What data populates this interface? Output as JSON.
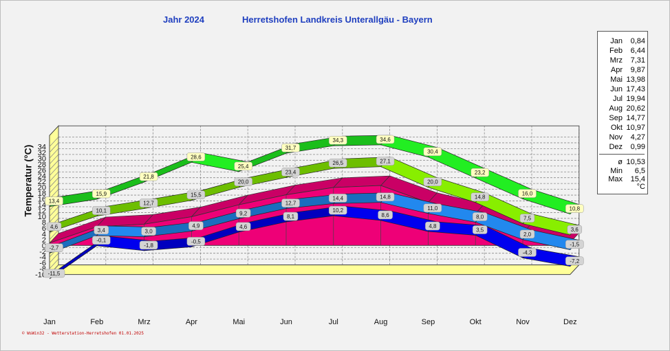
{
  "header": {
    "year_label": "Jahr  2024",
    "station": "Herretshofen Landkreis Unterallgäu - Bayern"
  },
  "footer": "© WsWin32 - Wetterstation-Herretshofen  01.01.2025",
  "chart_data": {
    "type": "area",
    "title": "Jahr  2024",
    "subtitle": "Herretshofen Landkreis Unterallgäu - Bayern",
    "ylabel": "Temperatur  (°C)",
    "xlabel": "",
    "categories": [
      "Jan",
      "Feb",
      "Mrz",
      "Apr",
      "Mai",
      "Jun",
      "Jul",
      "Aug",
      "Sep",
      "Okt",
      "Nov",
      "Dez"
    ],
    "ylim": [
      -10,
      35
    ],
    "yticks": [
      -10,
      -8,
      -6,
      -4,
      -2,
      0,
      2,
      4,
      6,
      8,
      10,
      12,
      14,
      16,
      18,
      20,
      22,
      24,
      26,
      28,
      30,
      32,
      34
    ],
    "ytick_labels": [
      "-10",
      "-8",
      "-6",
      "-4",
      "-2",
      "0",
      "2",
      "4",
      "6",
      "8",
      "10",
      "12",
      "14",
      "16",
      "18",
      "20",
      "22",
      "24",
      "26",
      "28",
      "30",
      "32",
      "34"
    ],
    "grid": true,
    "series": [
      {
        "key": "max_abs",
        "values": [
          13.4,
          15.9,
          21.8,
          28.6,
          25.4,
          31.7,
          34.3,
          34.6,
          30.4,
          23.2,
          16.0,
          10.8
        ],
        "labels": [
          "13,4",
          "15,9",
          "21,8",
          "28,6",
          "25,4",
          "31,7",
          "34,3",
          "34,6",
          "30,4",
          "23,2",
          "16,0",
          "10,8"
        ],
        "color": "#22ee22",
        "label_bg": "#ffffc0"
      },
      {
        "key": "max_avg",
        "values": [
          4.6,
          10.1,
          12.7,
          15.5,
          20.0,
          23.4,
          26.5,
          27.1,
          20.0,
          14.8,
          7.5,
          3.6
        ],
        "labels": [
          "4,6",
          "10,1",
          "12,7",
          "15,5",
          "20,0",
          "23,4",
          "26,5",
          "27,1",
          "20,0",
          "14,8",
          "7,5",
          "3,6"
        ],
        "color": "#88ee00",
        "label_bg": "#d4d4d4"
      },
      {
        "key": "mean",
        "values": [
          0.84,
          6.44,
          7.31,
          9.87,
          13.98,
          17.43,
          19.94,
          20.62,
          14.77,
          10.97,
          4.27,
          0.99
        ],
        "color": "#ee0077"
      },
      {
        "key": "min_avg",
        "values": [
          -2.7,
          3.4,
          3.0,
          4.9,
          9.2,
          12.7,
          14.4,
          14.8,
          11.0,
          8.0,
          2.0,
          -1.5
        ],
        "labels": [
          "-2,7",
          "3,4",
          "3,0",
          "4,9",
          "9,2",
          "12,7",
          "14,4",
          "14,8",
          "11,0",
          "8,0",
          "2,0",
          "-1,5"
        ],
        "color": "#2288ee",
        "label_bg": "#d4d4d4"
      },
      {
        "key": "min_abs",
        "values": [
          -11.5,
          -0.1,
          -1.8,
          -0.5,
          4.6,
          8.1,
          10.2,
          8.6,
          4.8,
          3.5,
          -4.3,
          -7.2
        ],
        "labels": [
          "-11,5",
          "-0,1",
          "-1,8",
          "-0,5",
          "4,6",
          "8,1",
          "10,2",
          "8,6",
          "4,8",
          "3,5",
          "-4,3",
          "-7,2"
        ],
        "color": "#0000ee",
        "label_bg": "#d4d4d4"
      }
    ]
  },
  "summary": {
    "months": [
      {
        "m": "Jan",
        "v": "0,84"
      },
      {
        "m": "Feb",
        "v": "6,44"
      },
      {
        "m": "Mrz",
        "v": "7,31"
      },
      {
        "m": "Apr",
        "v": "9,87"
      },
      {
        "m": "Mai",
        "v": "13,98"
      },
      {
        "m": "Jun",
        "v": "17,43"
      },
      {
        "m": "Jul",
        "v": "19,94"
      },
      {
        "m": "Aug",
        "v": "20,62"
      },
      {
        "m": "Sep",
        "v": "14,77"
      },
      {
        "m": "Okt",
        "v": "10,97"
      },
      {
        "m": "Nov",
        "v": "4,27"
      },
      {
        "m": "Dez",
        "v": "0,99"
      }
    ],
    "stats": [
      {
        "m": "ø",
        "v": "10,53"
      },
      {
        "m": "Min",
        "v": "6,5"
      },
      {
        "m": "Max",
        "v": "15,4"
      }
    ],
    "unit": "°C"
  },
  "colors": {
    "wall": "#ffff99",
    "plot_bg": "#f2f2f2",
    "grid": "#8a8a8a",
    "header": "#1f3fbf"
  }
}
